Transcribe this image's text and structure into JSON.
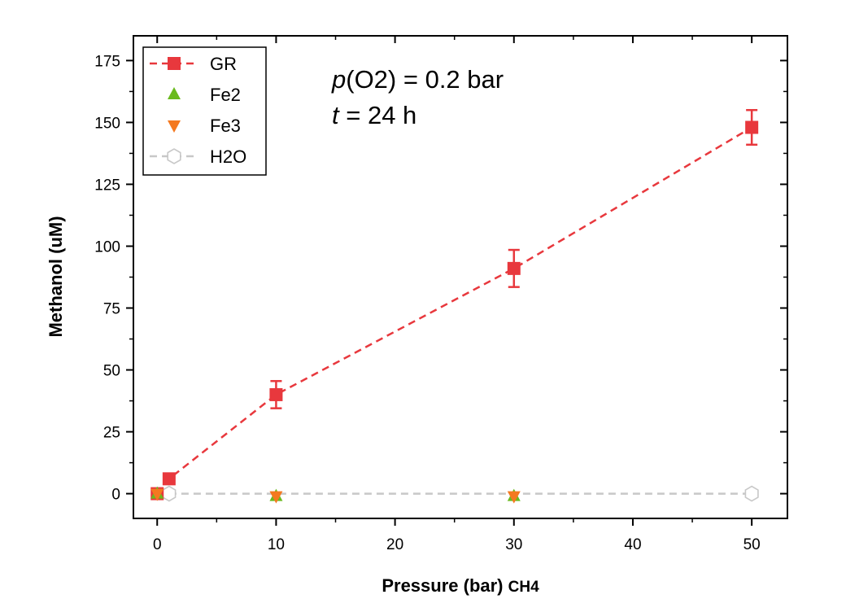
{
  "chart_data": {
    "type": "line",
    "xlabel": "Pressure (bar)",
    "xlabel_suffix": "CH4",
    "ylabel": "Methanol (uM)",
    "xlim": [
      -2,
      53
    ],
    "ylim": [
      -10,
      185
    ],
    "xticks": [
      0,
      10,
      20,
      30,
      40,
      50
    ],
    "yticks": [
      0,
      25,
      50,
      75,
      100,
      125,
      150,
      175
    ],
    "grid": false,
    "legend_position": "top-left",
    "annotations": {
      "line1_italic": "p",
      "line1_rest": "(O2) = 0.2 bar",
      "line2_italic": "t",
      "line2_rest": " = 24 h"
    },
    "series": [
      {
        "name": "GR",
        "marker": "square",
        "line": "dashed",
        "color": "#e8383d",
        "x": [
          0,
          1,
          10,
          30,
          50
        ],
        "y": [
          0,
          6,
          40,
          91,
          148
        ],
        "err": [
          0,
          0,
          5.5,
          7.5,
          7
        ]
      },
      {
        "name": "Fe2",
        "marker": "triangle-up",
        "line": "none",
        "color": "#6aba1e",
        "x": [
          0,
          10,
          30
        ],
        "y": [
          0,
          -1,
          -1
        ],
        "err": [
          0,
          0,
          0
        ]
      },
      {
        "name": "Fe3",
        "marker": "triangle-down",
        "line": "none",
        "color": "#f47920",
        "x": [
          0,
          10,
          30
        ],
        "y": [
          0,
          -1,
          -1
        ],
        "err": [
          0,
          0,
          0
        ]
      },
      {
        "name": "H2O",
        "marker": "hexagon-open",
        "line": "dashed",
        "color": "#c8c8c8",
        "x": [
          1,
          50
        ],
        "y": [
          0,
          0
        ],
        "err": [
          0,
          0
        ]
      }
    ]
  }
}
